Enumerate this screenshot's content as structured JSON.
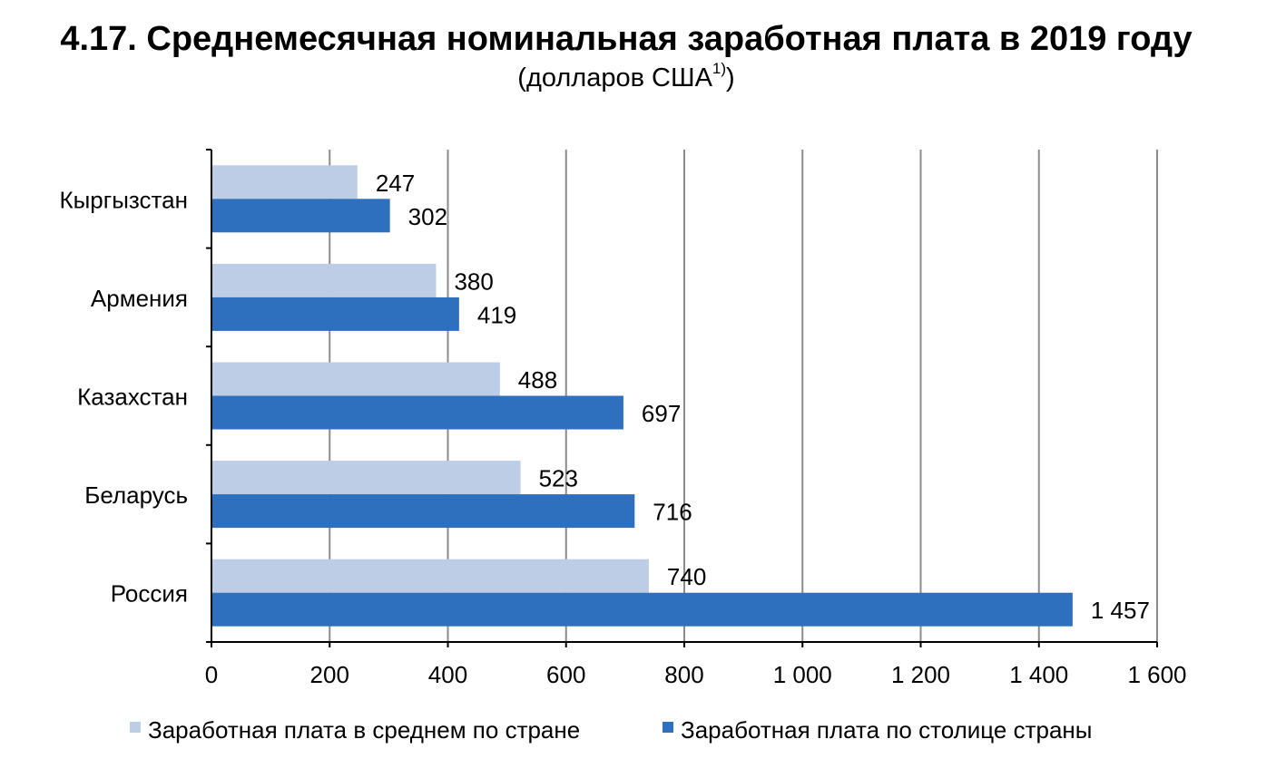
{
  "title": "4.17. Среднемесячная номинальная заработная плата в 2019 году",
  "subtitle": "(долларов США",
  "subtitle_note": "1)",
  "subtitle_close": ")",
  "colors": {
    "average": "#bccde5",
    "capital": "#2e6fbe",
    "grid": "#8c8c8c",
    "axis": "#000000"
  },
  "chart_data": {
    "type": "bar",
    "orientation": "horizontal",
    "categories": [
      "Кыргызстан",
      "Армения",
      "Казахстан",
      "Беларусь",
      "Россия"
    ],
    "series": [
      {
        "name": "Заработная плата в среднем по стране",
        "values": [
          247,
          380,
          488,
          523,
          740
        ],
        "value_labels": [
          "247",
          "380",
          "488",
          "523",
          "740"
        ]
      },
      {
        "name": "Заработная плата по столице страны",
        "values": [
          302,
          419,
          697,
          716,
          1457
        ],
        "value_labels": [
          "302",
          "419",
          "697",
          "716",
          "1 457"
        ]
      }
    ],
    "xlim": [
      0,
      1600
    ],
    "xticks": [
      0,
      200,
      400,
      600,
      800,
      1000,
      1200,
      1400,
      1600
    ],
    "xtick_labels": [
      "0",
      "200",
      "400",
      "600",
      "800",
      "1 000",
      "1 200",
      "1 400",
      "1 600"
    ],
    "grid": "vertical",
    "legend_position": "bottom"
  }
}
